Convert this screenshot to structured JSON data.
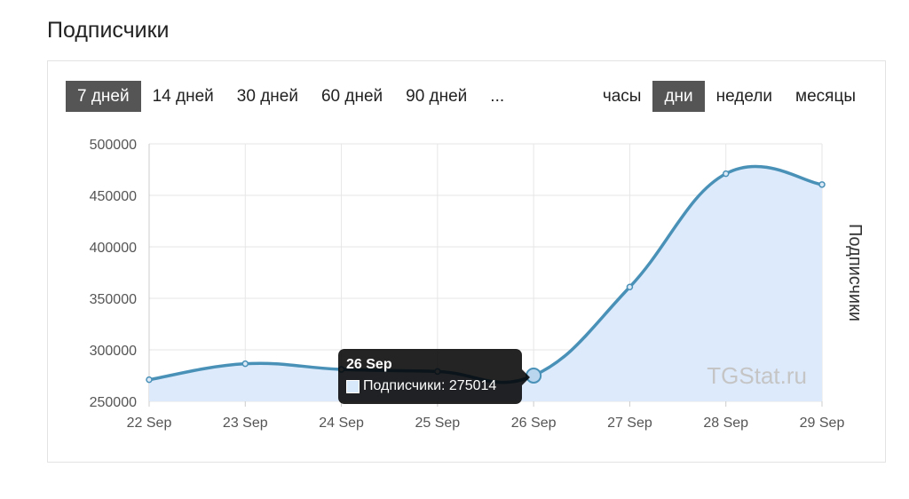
{
  "page": {
    "title": "Подписчики"
  },
  "range_tabs": [
    {
      "label": "7 дней",
      "active": true
    },
    {
      "label": "14 дней",
      "active": false
    },
    {
      "label": "30 дней",
      "active": false
    },
    {
      "label": "60 дней",
      "active": false
    },
    {
      "label": "90 дней",
      "active": false
    },
    {
      "label": "...",
      "active": false
    }
  ],
  "unit_tabs": [
    {
      "label": "часы",
      "active": false
    },
    {
      "label": "дни",
      "active": true
    },
    {
      "label": "недели",
      "active": false
    },
    {
      "label": "месяцы",
      "active": false
    }
  ],
  "colors": {
    "line": "#4a91b8",
    "fill": "#ddeafb",
    "active_tab": "#555555"
  },
  "chart_data": {
    "type": "area",
    "x": [
      "22 Sep",
      "23 Sep",
      "24 Sep",
      "25 Sep",
      "26 Sep",
      "27 Sep",
      "28 Sep",
      "29 Sep"
    ],
    "series": [
      {
        "name": "Подписчики",
        "values": [
          271000,
          286500,
          281000,
          279000,
          275014,
          361000,
          471000,
          460500
        ]
      }
    ],
    "ylabel": "Подписчики",
    "ylim": [
      250000,
      500000
    ],
    "yticks": [
      250000,
      300000,
      350000,
      400000,
      450000,
      500000
    ],
    "grid": true,
    "watermark": "TGStat.ru",
    "tooltip": {
      "title": "26 Sep",
      "label": "Подписчики: 275014",
      "index": 4
    }
  }
}
